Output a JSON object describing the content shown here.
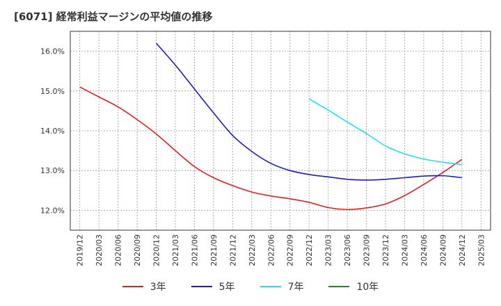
{
  "chart_data": {
    "type": "line",
    "title": "[6071]  経常利益マージンの平均値の推移",
    "xlabel": "",
    "ylabel": "",
    "ylim": [
      11.5,
      16.5
    ],
    "yticks": [
      {
        "value": 12.0,
        "label": "12.0%"
      },
      {
        "value": 13.0,
        "label": "13.0%"
      },
      {
        "value": 14.0,
        "label": "14.0%"
      },
      {
        "value": 15.0,
        "label": "15.0%"
      },
      {
        "value": 16.0,
        "label": "16.0%"
      }
    ],
    "xticks": [
      "2019/12",
      "2020/03",
      "2020/06",
      "2020/09",
      "2020/12",
      "2021/03",
      "2021/06",
      "2021/09",
      "2021/12",
      "2022/03",
      "2022/06",
      "2022/09",
      "2022/12",
      "2023/03",
      "2023/06",
      "2023/09",
      "2023/12",
      "2024/03",
      "2024/06",
      "2024/09",
      "2024/12",
      "2025/03"
    ],
    "grid": true,
    "legend_position": "bottom",
    "series": [
      {
        "name": "3年",
        "color": "#e02020",
        "x": [
          "2019/12",
          "2020/03",
          "2020/06",
          "2020/09",
          "2020/12",
          "2021/03",
          "2021/06",
          "2021/09",
          "2021/12",
          "2022/03",
          "2022/06",
          "2022/09",
          "2022/12",
          "2023/03",
          "2023/06",
          "2023/09",
          "2023/12",
          "2024/03",
          "2024/06",
          "2024/09",
          "2024/12"
        ],
        "values": [
          15.1,
          14.85,
          14.6,
          14.28,
          13.92,
          13.5,
          13.1,
          12.82,
          12.62,
          12.46,
          12.36,
          12.29,
          12.2,
          12.07,
          12.02,
          12.06,
          12.16,
          12.37,
          12.65,
          12.95,
          13.28
        ]
      },
      {
        "name": "5年",
        "color": "#1a1ad0",
        "x": [
          "2020/12",
          "2021/03",
          "2021/06",
          "2021/09",
          "2021/12",
          "2022/03",
          "2022/06",
          "2022/09",
          "2022/12",
          "2023/03",
          "2023/06",
          "2023/09",
          "2023/12",
          "2024/03",
          "2024/06",
          "2024/09",
          "2024/12"
        ],
        "values": [
          16.2,
          15.65,
          15.05,
          14.45,
          13.88,
          13.48,
          13.18,
          13.0,
          12.9,
          12.84,
          12.78,
          12.76,
          12.78,
          12.82,
          12.86,
          12.87,
          12.82
        ]
      },
      {
        "name": "7年",
        "color": "#22e0f0",
        "x": [
          "2022/12",
          "2023/03",
          "2023/06",
          "2023/09",
          "2023/12",
          "2024/03",
          "2024/06",
          "2024/09",
          "2024/12"
        ],
        "values": [
          14.8,
          14.52,
          14.22,
          13.93,
          13.62,
          13.42,
          13.29,
          13.21,
          13.15
        ]
      },
      {
        "name": "10年",
        "color": "#228b22",
        "x": [],
        "values": []
      }
    ]
  }
}
